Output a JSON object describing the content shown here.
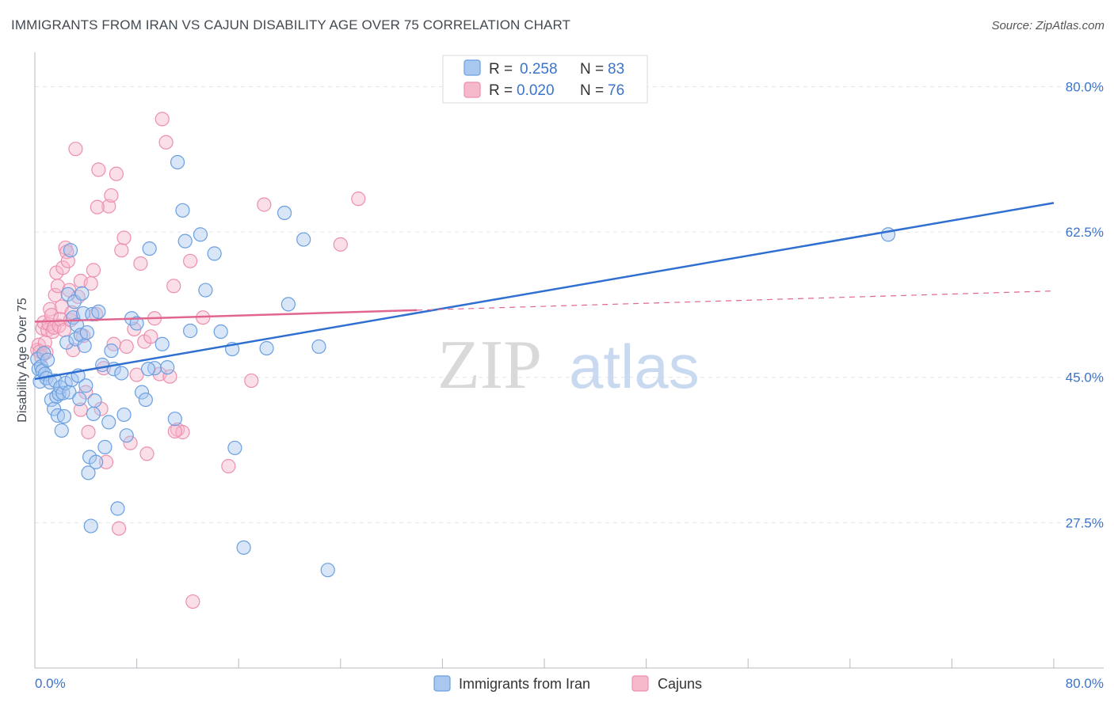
{
  "title": "IMMIGRANTS FROM IRAN VS CAJUN DISABILITY AGE OVER 75 CORRELATION CHART",
  "source": "Source: ZipAtlas.com",
  "watermark": {
    "zip": "ZIP",
    "atlas": "atlas"
  },
  "colors": {
    "blue_fill": "#a8c8f0",
    "blue_stroke": "#6a9fe0",
    "blue_line": "#2f6fd0",
    "pink_fill": "#f6b9cc",
    "pink_stroke": "#ec8fae",
    "pink_line": "#e0668f",
    "grid": "#e6e6ea",
    "axis": "#b9b9c0",
    "tick_text": "#3b74c9"
  },
  "legend": {
    "rows": [
      {
        "r_label": "R =",
        "r_value": "0.258",
        "n_label": "N =",
        "n_value": "83"
      },
      {
        "r_label": "R =",
        "r_value": "0.020",
        "n_label": "N =",
        "n_value": "76"
      }
    ]
  },
  "chart_data": {
    "type": "scatter",
    "title": "IMMIGRANTS FROM IRAN VS CAJUN DISABILITY AGE OVER 75 CORRELATION CHART",
    "xlabel": "",
    "ylabel": "Disability Age Over 75",
    "xlim": [
      0,
      80
    ],
    "ylim": [
      10,
      83
    ],
    "x_tick_labels": [
      "0.0%",
      "80.0%"
    ],
    "y_ticks": [
      27.5,
      45.0,
      62.5,
      80.0
    ],
    "y_tick_labels": [
      "27.5%",
      "45.0%",
      "62.5%",
      "80.0%"
    ],
    "legend_position": "top-center",
    "series": [
      {
        "name": "Immigrants from Iran",
        "R": 0.258,
        "N": 83,
        "trend": {
          "x0": 0,
          "y0": 44.8,
          "x1": 80,
          "y1": 66.0
        },
        "points": [
          [
            0.2,
            47.2
          ],
          [
            0.3,
            46.0
          ],
          [
            0.4,
            44.5
          ],
          [
            0.5,
            46.3
          ],
          [
            0.6,
            45.8
          ],
          [
            0.7,
            47.9
          ],
          [
            0.8,
            45.4
          ],
          [
            0.9,
            44.9
          ],
          [
            1.0,
            47.1
          ],
          [
            1.2,
            44.4
          ],
          [
            1.3,
            42.3
          ],
          [
            1.5,
            41.2
          ],
          [
            1.6,
            44.6
          ],
          [
            1.7,
            42.7
          ],
          [
            1.8,
            40.4
          ],
          [
            1.9,
            43.0
          ],
          [
            2.0,
            43.8
          ],
          [
            2.1,
            38.6
          ],
          [
            2.2,
            43.1
          ],
          [
            2.3,
            40.3
          ],
          [
            2.4,
            44.3
          ],
          [
            2.5,
            49.2
          ],
          [
            2.6,
            55.0
          ],
          [
            2.7,
            43.2
          ],
          [
            2.8,
            60.3
          ],
          [
            2.9,
            44.7
          ],
          [
            3.0,
            52.2
          ],
          [
            3.1,
            54.1
          ],
          [
            3.2,
            49.6
          ],
          [
            3.3,
            51.3
          ],
          [
            3.4,
            45.2
          ],
          [
            3.5,
            42.4
          ],
          [
            3.6,
            50.1
          ],
          [
            3.7,
            55.1
          ],
          [
            3.8,
            52.7
          ],
          [
            3.9,
            48.8
          ],
          [
            4.0,
            44.0
          ],
          [
            4.1,
            50.4
          ],
          [
            4.2,
            33.5
          ],
          [
            4.3,
            35.4
          ],
          [
            4.4,
            27.1
          ],
          [
            4.5,
            52.6
          ],
          [
            4.6,
            40.6
          ],
          [
            4.7,
            42.2
          ],
          [
            4.8,
            34.8
          ],
          [
            5.0,
            52.9
          ],
          [
            5.3,
            46.5
          ],
          [
            5.5,
            36.6
          ],
          [
            5.8,
            39.6
          ],
          [
            6.0,
            48.2
          ],
          [
            6.2,
            46.0
          ],
          [
            6.5,
            29.2
          ],
          [
            6.8,
            45.5
          ],
          [
            7.0,
            40.5
          ],
          [
            7.2,
            38.0
          ],
          [
            7.6,
            52.1
          ],
          [
            8.0,
            51.5
          ],
          [
            8.4,
            43.2
          ],
          [
            8.7,
            42.3
          ],
          [
            9.0,
            60.5
          ],
          [
            9.4,
            46.1
          ],
          [
            10.0,
            49.0
          ],
          [
            10.4,
            46.2
          ],
          [
            11.2,
            70.9
          ],
          [
            11.6,
            65.1
          ],
          [
            11.8,
            61.4
          ],
          [
            12.2,
            50.6
          ],
          [
            13.0,
            62.2
          ],
          [
            13.4,
            55.5
          ],
          [
            14.1,
            59.9
          ],
          [
            14.6,
            50.5
          ],
          [
            15.5,
            48.4
          ],
          [
            15.7,
            36.5
          ],
          [
            16.4,
            24.5
          ],
          [
            18.2,
            48.5
          ],
          [
            19.6,
            64.8
          ],
          [
            19.9,
            53.8
          ],
          [
            21.1,
            61.6
          ],
          [
            22.3,
            48.7
          ],
          [
            23.0,
            21.8
          ],
          [
            67.0,
            62.2
          ],
          [
            8.9,
            46.0
          ],
          [
            11.0,
            40.0
          ]
        ]
      },
      {
        "name": "Cajuns",
        "R": 0.02,
        "N": 76,
        "trend": {
          "x0": 0,
          "y0": 51.7,
          "x1": 80,
          "y1": 55.4,
          "solid_until_x": 30
        },
        "points": [
          [
            0.2,
            48.3
          ],
          [
            0.3,
            48.9
          ],
          [
            0.4,
            48.1
          ],
          [
            0.5,
            47.5
          ],
          [
            0.6,
            50.9
          ],
          [
            0.7,
            51.6
          ],
          [
            0.8,
            49.2
          ],
          [
            0.9,
            48.0
          ],
          [
            1.0,
            50.7
          ],
          [
            1.1,
            51.4
          ],
          [
            1.2,
            53.2
          ],
          [
            1.3,
            52.5
          ],
          [
            1.4,
            50.5
          ],
          [
            1.5,
            51.0
          ],
          [
            1.6,
            54.9
          ],
          [
            1.7,
            57.6
          ],
          [
            1.8,
            56.0
          ],
          [
            1.9,
            51.2
          ],
          [
            2.0,
            52.0
          ],
          [
            2.1,
            53.5
          ],
          [
            2.2,
            58.2
          ],
          [
            2.3,
            50.7
          ],
          [
            2.4,
            60.6
          ],
          [
            2.5,
            60.1
          ],
          [
            2.6,
            59.0
          ],
          [
            2.7,
            55.5
          ],
          [
            2.8,
            51.9
          ],
          [
            2.9,
            52.8
          ],
          [
            3.0,
            48.3
          ],
          [
            3.2,
            72.5
          ],
          [
            3.4,
            54.7
          ],
          [
            3.6,
            56.6
          ],
          [
            3.8,
            50.0
          ],
          [
            4.0,
            43.2
          ],
          [
            4.2,
            38.4
          ],
          [
            4.4,
            56.3
          ],
          [
            4.6,
            57.9
          ],
          [
            4.8,
            52.6
          ],
          [
            5.0,
            70.0
          ],
          [
            5.2,
            41.2
          ],
          [
            5.4,
            46.1
          ],
          [
            5.6,
            34.8
          ],
          [
            5.8,
            65.6
          ],
          [
            6.0,
            66.9
          ],
          [
            6.2,
            49.0
          ],
          [
            6.4,
            69.5
          ],
          [
            6.6,
            26.8
          ],
          [
            6.8,
            60.3
          ],
          [
            7.0,
            61.8
          ],
          [
            7.2,
            48.7
          ],
          [
            7.5,
            37.1
          ],
          [
            7.8,
            50.8
          ],
          [
            8.0,
            45.3
          ],
          [
            8.3,
            58.7
          ],
          [
            8.6,
            49.3
          ],
          [
            8.8,
            35.8
          ],
          [
            9.1,
            49.9
          ],
          [
            9.4,
            52.1
          ],
          [
            9.8,
            45.4
          ],
          [
            10.0,
            76.1
          ],
          [
            10.3,
            73.3
          ],
          [
            10.6,
            45.1
          ],
          [
            10.9,
            56.0
          ],
          [
            11.2,
            38.7
          ],
          [
            11.6,
            38.4
          ],
          [
            12.2,
            59.0
          ],
          [
            12.4,
            18.0
          ],
          [
            13.2,
            52.2
          ],
          [
            15.2,
            34.3
          ],
          [
            17.0,
            44.6
          ],
          [
            18.0,
            65.8
          ],
          [
            24.0,
            61.0
          ],
          [
            25.4,
            66.5
          ],
          [
            11.0,
            38.5
          ],
          [
            3.6,
            41.1
          ],
          [
            4.9,
            65.5
          ]
        ]
      }
    ]
  },
  "bottom_legend": {
    "items": [
      {
        "label": "Immigrants from Iran"
      },
      {
        "label": "Cajuns"
      }
    ]
  }
}
